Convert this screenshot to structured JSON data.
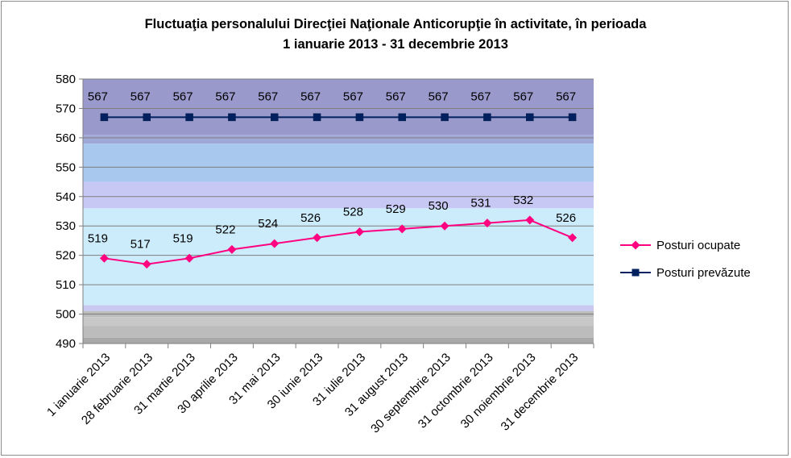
{
  "chart_data": {
    "type": "line",
    "title_line1": "Fluctuaţia personalului Direcţiei Naţionale Anticorupţie în activitate, în perioada",
    "title_line2": "1 ianuarie 2013 - 31 decembrie 2013",
    "categories": [
      "1 ianuarie 2013",
      "28 februarie 2013",
      "31 martie 2013",
      "30 aprilie 2013",
      "31 mai 2013",
      "30 iunie 2013",
      "31 iulie 2013",
      "31 august 2013",
      "30 septembrie 2013",
      "31 octombrie 2013",
      "30 noiembrie 2013",
      "31 decembrie 2013"
    ],
    "series": [
      {
        "name": "Posturi ocupate",
        "values": [
          519,
          517,
          519,
          522,
          524,
          526,
          528,
          529,
          530,
          531,
          532,
          526
        ],
        "color": "#ff0080",
        "marker": "diamond"
      },
      {
        "name": "Posturi prevăzute",
        "values": [
          567,
          567,
          567,
          567,
          567,
          567,
          567,
          567,
          567,
          567,
          567,
          567
        ],
        "color": "#002060",
        "marker": "square"
      }
    ],
    "ylim": [
      490,
      580
    ],
    "yticks": [
      490,
      500,
      510,
      520,
      530,
      540,
      550,
      560,
      570,
      580
    ],
    "grid": true,
    "legend": "right"
  }
}
